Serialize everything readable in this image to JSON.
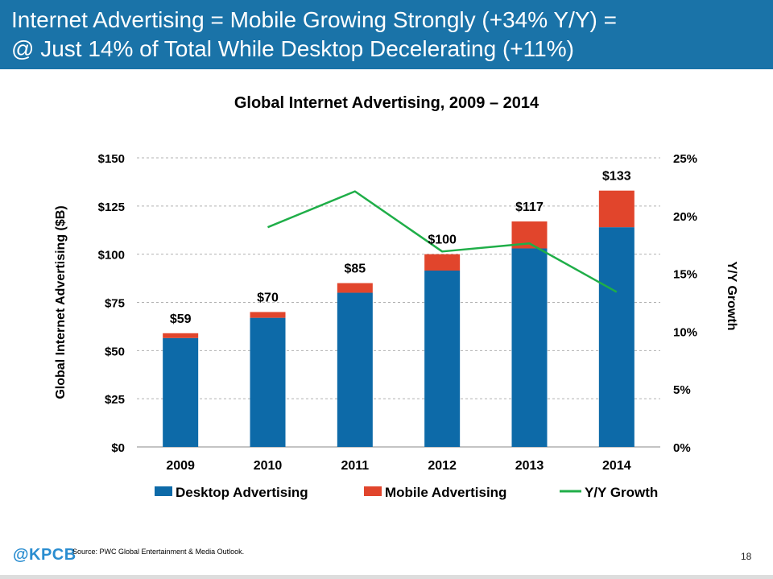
{
  "header": {
    "line1": "Internet Advertising = Mobile Growing Strongly (+34% Y/Y) =",
    "line2": "@ Just 14% of Total While Desktop Decelerating (+11%)",
    "background_color": "#1a73a8"
  },
  "chart_data": {
    "type": "bar",
    "stacked": true,
    "title": "Global Internet Advertising, 2009 – 2014",
    "categories": [
      "2009",
      "2010",
      "2011",
      "2012",
      "2013",
      "2014"
    ],
    "series": [
      {
        "name": "Desktop Advertising",
        "values": [
          56.5,
          67,
          80,
          91.5,
          103,
          114
        ],
        "color": "#0d6aa8"
      },
      {
        "name": "Mobile Advertising",
        "values": [
          2.5,
          3,
          5,
          8.5,
          14,
          19
        ],
        "color": "#e1452c"
      }
    ],
    "totals_labels": [
      "$59",
      "$70",
      "$85",
      "$100",
      "$117",
      "$133"
    ],
    "line_series": {
      "name": "Y/Y Growth",
      "color": "#1fae48",
      "axis": "right",
      "values": [
        null,
        0.19,
        0.221,
        0.169,
        0.176,
        0.134
      ]
    },
    "ylabel": "Global Internet Advertising ($B)",
    "ylabel_right": "Y/Y Growth",
    "ylim": [
      0,
      150
    ],
    "ylim_right": [
      0,
      0.25
    ],
    "yticks": [
      "$0",
      "$25",
      "$50",
      "$75",
      "$100",
      "$125",
      "$150"
    ],
    "yticks_right": [
      "0%",
      "5%",
      "10%",
      "15%",
      "20%",
      "25%"
    ],
    "grid": "horizontal dashed",
    "legend_position": "bottom"
  },
  "footer": {
    "logo": "@KPCB",
    "source": "Source: PWC Global Entertainment & Media Outlook.",
    "page": "18"
  }
}
